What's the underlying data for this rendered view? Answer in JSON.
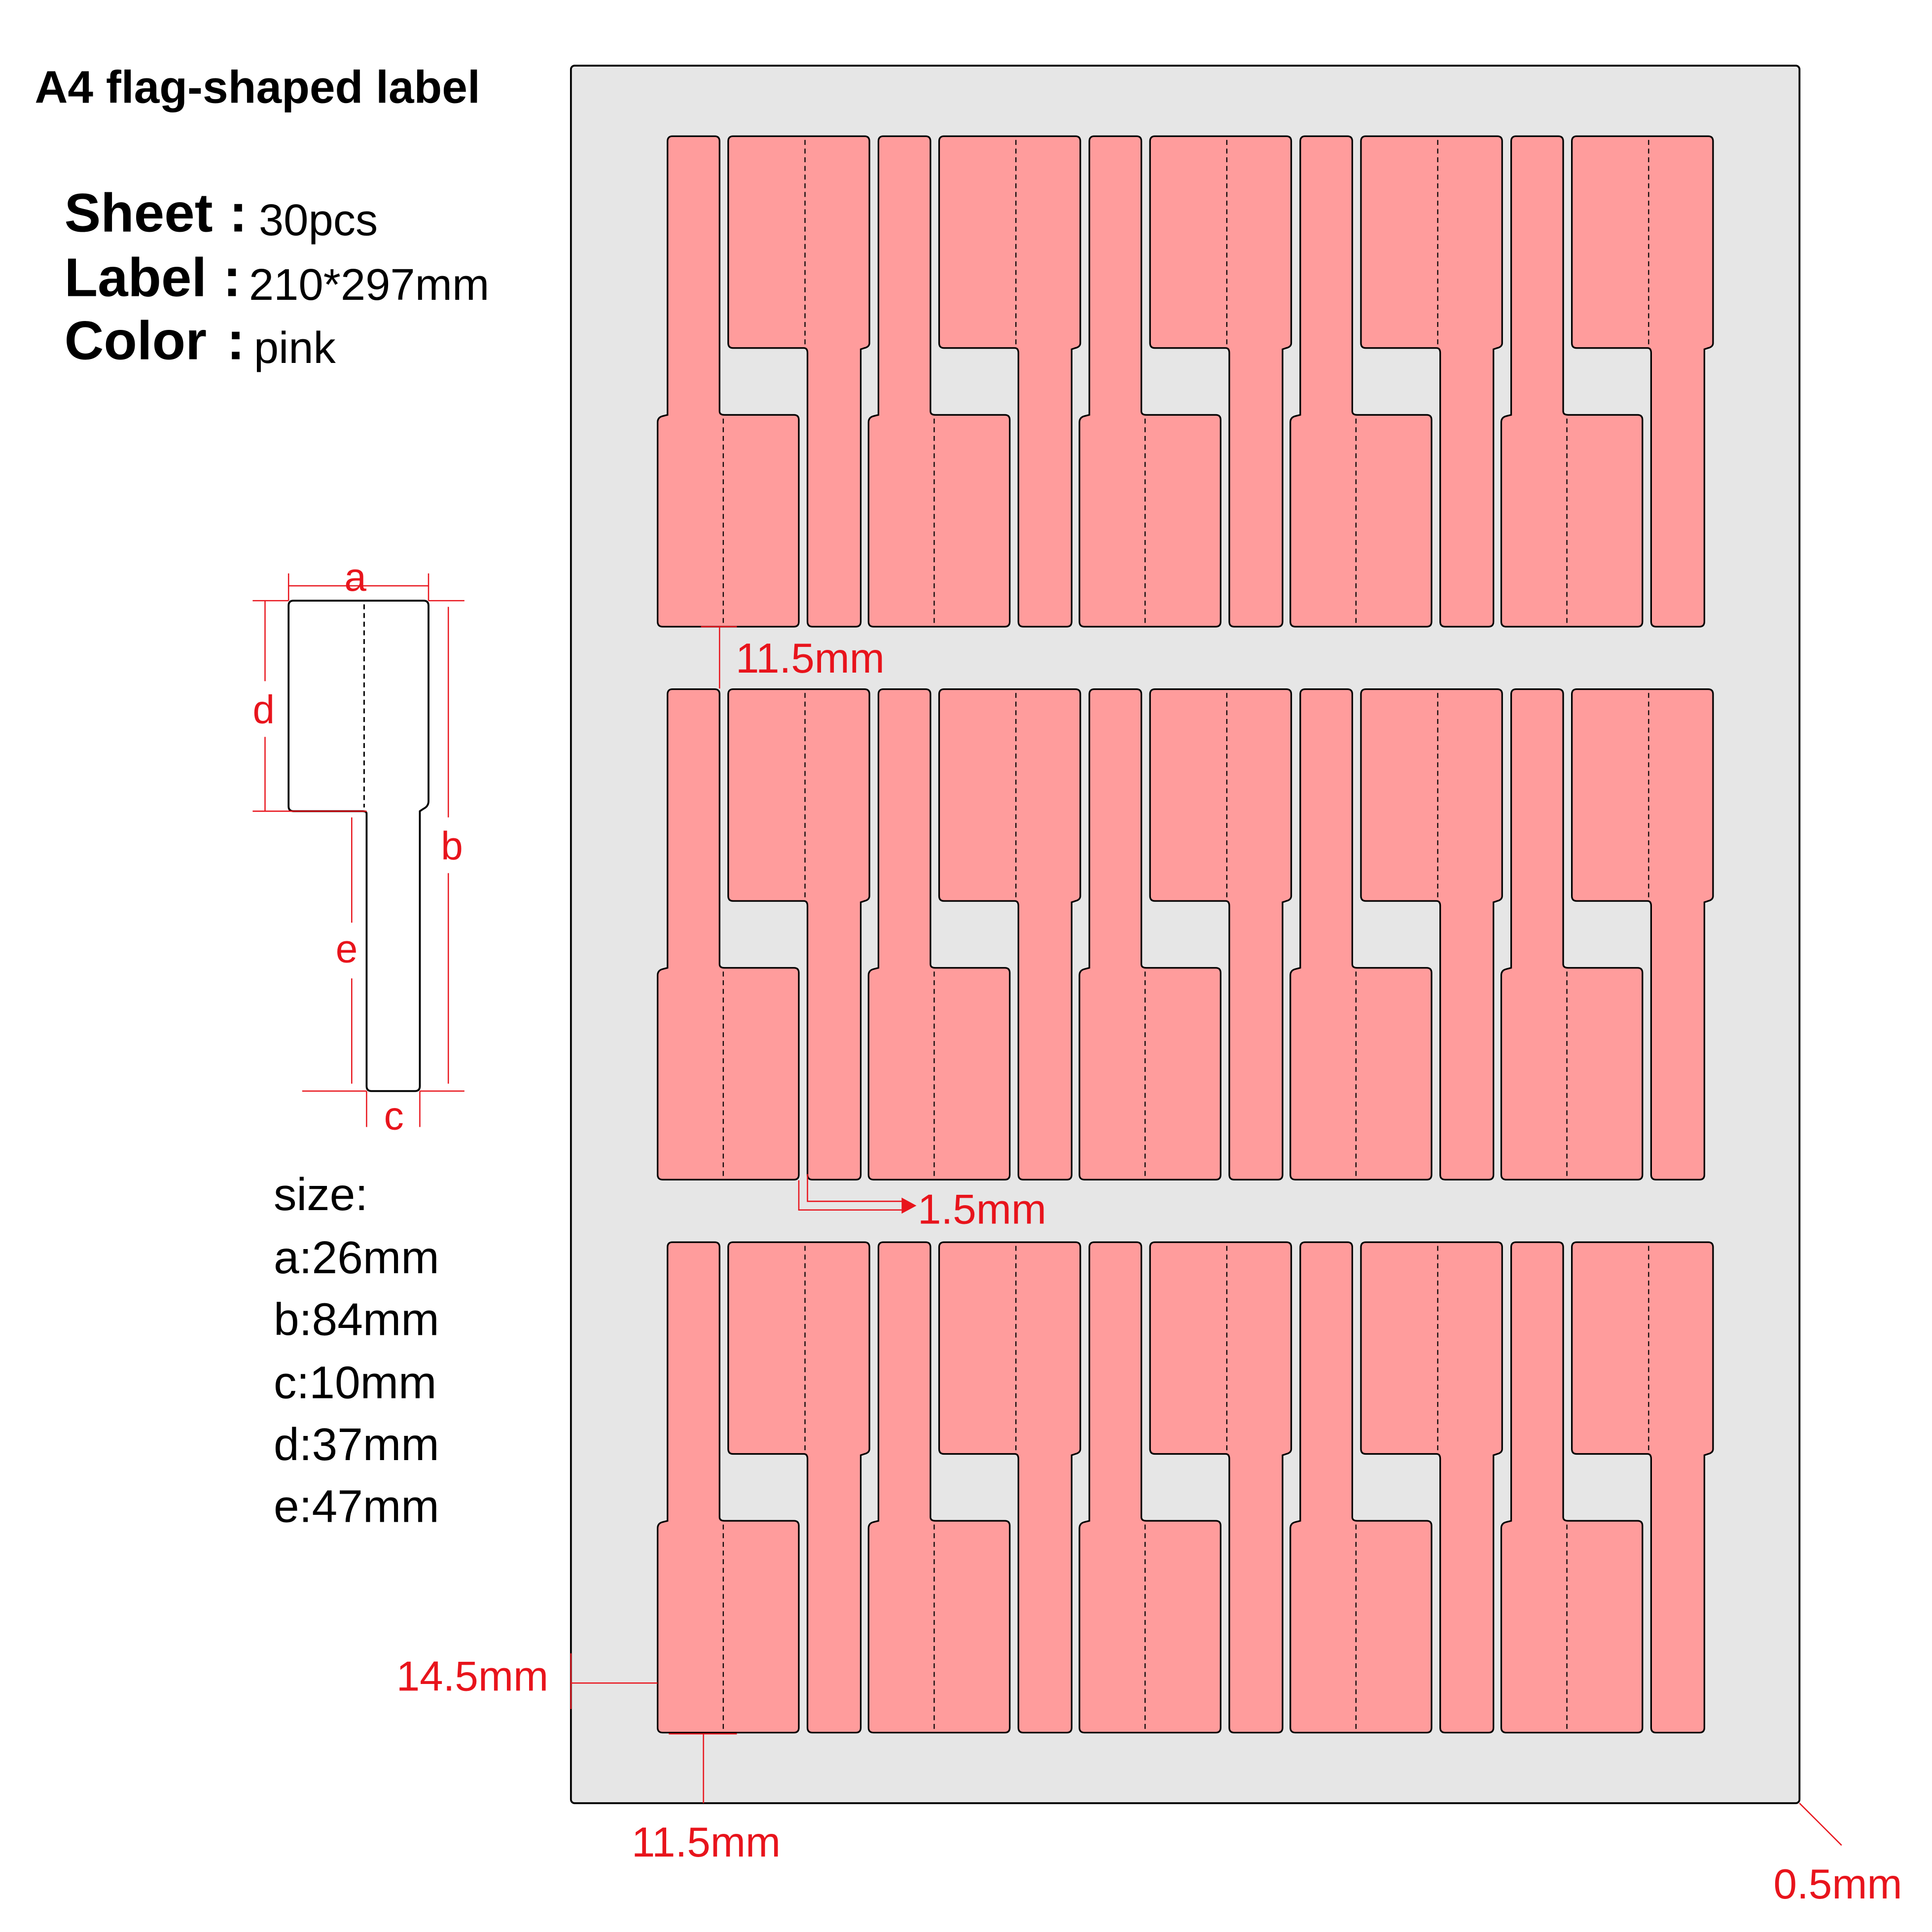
{
  "title": "A4 flag-shaped label",
  "specs": [
    {
      "key": "Sheet",
      "value": "30pcs"
    },
    {
      "key": "Label",
      "value": "210*297mm"
    },
    {
      "key": "Color",
      "value": "pink"
    }
  ],
  "diagram_letters": {
    "a": "a",
    "b": "b",
    "c": "c",
    "d": "d",
    "e": "e"
  },
  "size": {
    "heading": "size:",
    "items": [
      "a:26mm",
      "b:84mm",
      "c:10mm",
      "d:37mm",
      "e:47mm"
    ]
  },
  "annotations": {
    "row_gap": "11.5mm",
    "label_gap": "1.5mm",
    "left_margin": "14.5mm",
    "bottom_margin": "11.5mm",
    "corner": "0.5mm"
  },
  "sheet": {
    "rows": 3,
    "pairs_per_row": 5,
    "labels_total": 30
  },
  "colors": {
    "label": "#ff9c9c",
    "sheet": "#e6e6e6",
    "annotation": "#e8141c",
    "outline": "#000000"
  }
}
